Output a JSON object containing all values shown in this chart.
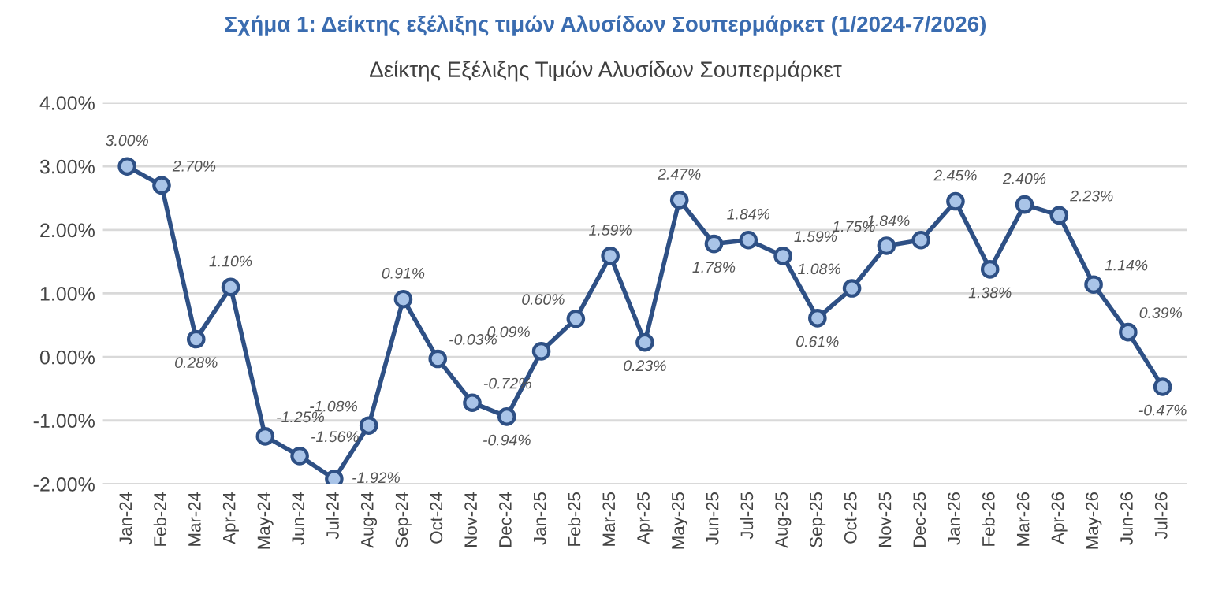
{
  "chart_data": {
    "type": "line",
    "title": "Σχήμα 1: Δείκτης εξέλιξης τιμών Αλυσίδων Σουπερμάρκετ (1/2024-7/2026)",
    "subtitle": "Δείκτης Εξέλιξης Τιμών Αλυσίδων Σουπερμάρκετ",
    "categories": [
      "Jan-24",
      "Feb-24",
      "Mar-24",
      "Apr-24",
      "May-24",
      "Jun-24",
      "Jul-24",
      "Aug-24",
      "Sep-24",
      "Oct-24",
      "Nov-24",
      "Dec-24",
      "Jan-25",
      "Feb-25",
      "Mar-25",
      "Apr-25",
      "May-25",
      "Jun-25",
      "Jul-25",
      "Aug-25",
      "Sep-25",
      "Oct-25",
      "Nov-25",
      "Dec-25",
      "Jan-26",
      "Feb-26",
      "Mar-26",
      "Apr-26",
      "May-26",
      "Jun-26",
      "Jul-26"
    ],
    "series": [
      {
        "color": "#2e5085",
        "values": [
          3.0,
          2.7,
          0.28,
          1.1,
          -1.25,
          -1.56,
          -1.92,
          -1.08,
          0.91,
          -0.03,
          -0.72,
          -0.94,
          0.09,
          0.6,
          1.59,
          0.23,
          2.47,
          1.78,
          1.84,
          1.59,
          0.61,
          1.08,
          1.75,
          1.84,
          2.45,
          1.38,
          2.4,
          2.23,
          1.14,
          0.39,
          -0.47
        ],
        "value_labels": [
          "3.00%",
          "2.70%",
          "0.28%",
          "1.10%",
          "-1.25%",
          "-1.56%",
          "-1.92%",
          "-1.08%",
          "0.91%",
          "-0.03%",
          "-0.72%",
          "-0.94%",
          "0.09%",
          "0.60%",
          "1.59%",
          "0.23%",
          "2.47%",
          "1.78%",
          "1.84%",
          "1.59%",
          "0.61%",
          "1.08%",
          "1.75%",
          "1.84%",
          "2.45%",
          "1.38%",
          "2.40%",
          "2.23%",
          "1.14%",
          "0.39%",
          "-0.47%"
        ]
      }
    ],
    "ylim": [
      -2,
      4
    ],
    "yticks": [
      {
        "value": -2,
        "label": "-2.00%"
      },
      {
        "value": -1,
        "label": "-1.00%"
      },
      {
        "value": 0,
        "label": "0.00%"
      },
      {
        "value": 1,
        "label": "1.00%"
      },
      {
        "value": 2,
        "label": "2.00%"
      },
      {
        "value": 3,
        "label": "3.00%"
      },
      {
        "value": 4,
        "label": "4.00%"
      }
    ],
    "grid": "y",
    "marker": "circle",
    "line_style": "solid",
    "legend": false
  }
}
